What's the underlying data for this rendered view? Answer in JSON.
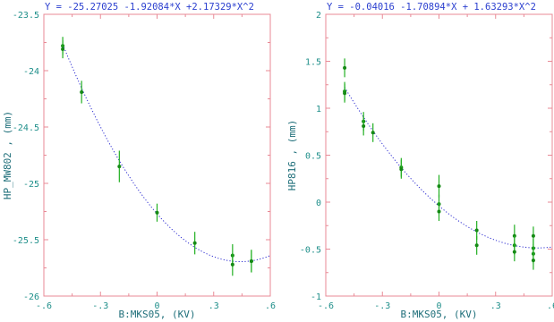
{
  "chart_data": [
    {
      "type": "scatter",
      "title": "Y = -25.27025 -1.92084*X +2.17329*X^2",
      "xlabel": "B:MKS05, (KV)",
      "ylabel": "HP_MW802  , (mm)",
      "xlim": [
        -0.6,
        0.6
      ],
      "ylim": [
        -26,
        -23.5
      ],
      "xticks": [
        "-.6",
        "-.3",
        "0",
        ".3",
        ".6"
      ],
      "yticks": [
        "-23.5",
        "-24",
        "-24.5",
        "-25",
        "-25.5",
        "-26"
      ],
      "ytick_values": [
        -23.5,
        -24,
        -24.5,
        -25,
        -25.5,
        -26
      ],
      "xtick_values": [
        -0.6,
        -0.3,
        0,
        0.3,
        0.6
      ],
      "fit": {
        "c0": -25.27025,
        "c1": -1.92084,
        "c2": 2.17329,
        "x_range": [
          -0.5,
          0.6
        ]
      },
      "series": [
        {
          "x": [
            -0.5,
            -0.5,
            -0.4,
            -0.2,
            0.0,
            0.2,
            0.4,
            0.4,
            0.5,
            0.5
          ],
          "y": [
            -23.78,
            -23.81,
            -24.19,
            -24.85,
            -25.26,
            -25.53,
            -25.64,
            -25.72,
            -25.69,
            -25.69
          ],
          "err": [
            0.08,
            0.08,
            0.1,
            0.14,
            0.08,
            0.1,
            0.1,
            0.1,
            0.1,
            0.1
          ]
        }
      ],
      "colors": {
        "points": "#158a15",
        "errors": "#22b022",
        "fit": "#2a2ad0",
        "frame": "#e88a96",
        "title": "#2b3fcf",
        "ticks": "#1f8f8a"
      }
    },
    {
      "type": "scatter",
      "title": "Y = -0.04016 -1.70894*X + 1.63293*X^2",
      "xlabel": "B:MKS05, (KV)",
      "ylabel": "HP816    , (mm)",
      "xlim": [
        -0.6,
        0.6
      ],
      "ylim": [
        -1,
        2
      ],
      "xticks": [
        "-.6",
        "-.3",
        "0",
        ".3",
        ".6"
      ],
      "yticks": [
        "2",
        "1.5",
        "1",
        "0.5",
        "0",
        "-0.5",
        "-1"
      ],
      "ytick_values": [
        2,
        1.5,
        1,
        0.5,
        0,
        -0.5,
        -1
      ],
      "xtick_values": [
        -0.6,
        -0.3,
        0,
        0.3,
        0.6
      ],
      "fit": {
        "c0": -0.04016,
        "c1": -1.70894,
        "c2": 1.63293,
        "x_range": [
          -0.5,
          0.6
        ]
      },
      "series": [
        {
          "x": [
            -0.5,
            -0.5,
            -0.5,
            -0.4,
            -0.4,
            -0.35,
            -0.2,
            -0.2,
            0.0,
            0.0,
            0.0,
            0.2,
            0.2,
            0.4,
            0.4,
            0.4,
            0.5,
            0.5,
            0.5,
            0.5
          ],
          "y": [
            1.43,
            1.18,
            1.16,
            0.86,
            0.81,
            0.74,
            0.37,
            0.35,
            0.17,
            -0.02,
            -0.1,
            -0.3,
            -0.46,
            -0.36,
            -0.46,
            -0.53,
            -0.36,
            -0.49,
            -0.55,
            -0.62
          ],
          "err": [
            0.1,
            0.1,
            0.1,
            0.1,
            0.1,
            0.1,
            0.1,
            0.1,
            0.12,
            0.1,
            0.1,
            0.1,
            0.1,
            0.12,
            0.1,
            0.1,
            0.1,
            0.1,
            0.1,
            0.1
          ]
        }
      ],
      "colors": {
        "points": "#158a15",
        "errors": "#22b022",
        "fit": "#2a2ad0",
        "frame": "#e88a96",
        "title": "#2b3fcf",
        "ticks": "#1f8f8a"
      }
    }
  ]
}
